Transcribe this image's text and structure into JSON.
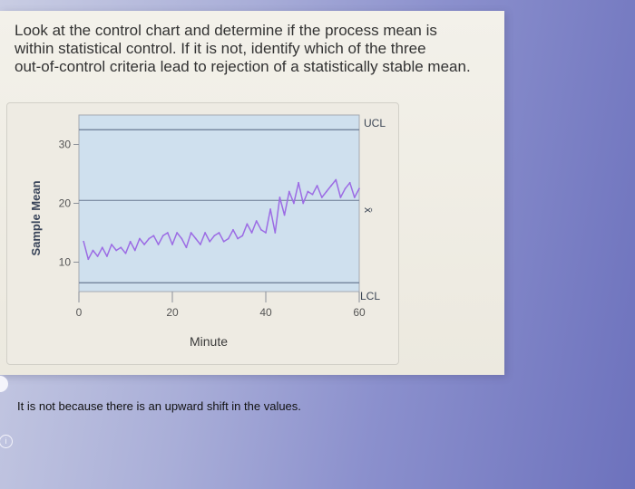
{
  "question": {
    "line1": "Look at the control chart and determine if the process mean is",
    "line2": "within statistical control. If it is not, identify which of the three",
    "line3": "out-of-control criteria lead to rejection of a statistically stable mean."
  },
  "chart_data": {
    "type": "line",
    "xlabel": "Minute",
    "ylabel": "Sample Mean",
    "xlim": [
      0,
      60
    ],
    "ylim": [
      5,
      35
    ],
    "x_ticks": [
      "0",
      "20",
      "40",
      "60"
    ],
    "y_ticks": [
      "10",
      "20",
      "30"
    ],
    "ucl": 32.5,
    "center": 20.5,
    "lcl": 6.5,
    "labels": {
      "ucl": "UCL",
      "center": "x̄",
      "lcl": "LCL"
    },
    "grid": false,
    "series": [
      {
        "x": [
          1,
          2,
          3,
          4,
          5,
          6,
          7,
          8,
          9,
          10,
          11,
          12,
          13,
          14,
          15,
          16,
          17,
          18,
          19,
          20,
          21,
          22,
          23,
          24,
          25,
          26,
          27,
          28,
          29,
          30,
          31,
          32,
          33,
          34,
          35,
          36,
          37,
          38,
          39,
          40,
          41,
          42,
          43,
          44,
          45,
          46,
          47,
          48,
          49,
          50,
          51,
          52,
          53,
          54,
          55,
          56,
          57,
          58,
          59,
          60
        ],
        "values": [
          13.5,
          10.5,
          12,
          11,
          12.5,
          11,
          13,
          12,
          12.5,
          11.5,
          13.5,
          12,
          14,
          13,
          14,
          14.5,
          13,
          14.5,
          15,
          13,
          15,
          14,
          12.5,
          15,
          14,
          13,
          15,
          13.5,
          14.5,
          15,
          13.5,
          14,
          15.5,
          14,
          14.5,
          16.5,
          15,
          17,
          15.5,
          15,
          19,
          15,
          21,
          18,
          22,
          20,
          23.5,
          20,
          22,
          21.5,
          23,
          21,
          22,
          23,
          24,
          21,
          22.5,
          23.5,
          21,
          22.5
        ]
      }
    ],
    "colors": {
      "plot_bg": "#cfe0ee",
      "series": "#9c6ce4",
      "ucl": "#6a7a92",
      "center": "#6a7a92",
      "lcl": "#6a7a92"
    }
  },
  "answer": {
    "text": "It is not because there is an upward shift in the values."
  },
  "icons": {
    "selected_radio": "radio-circle-icon",
    "info": "info-icon"
  }
}
